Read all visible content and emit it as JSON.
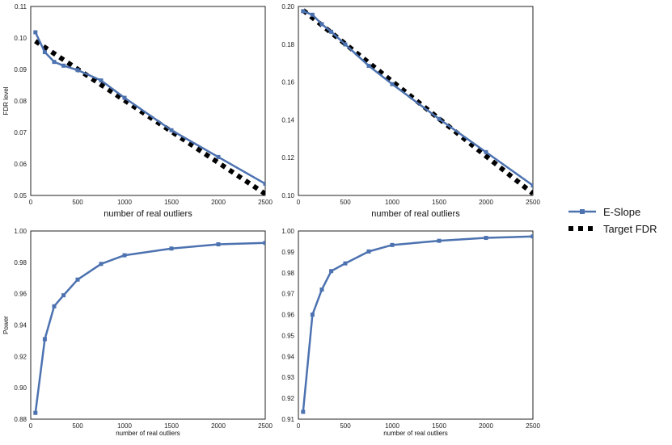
{
  "colors": {
    "e_slope": "#4C72B0",
    "target": "#000000",
    "frame": "#222222"
  },
  "legend": {
    "entries": [
      {
        "name": "E-Slope",
        "style": "line-square"
      },
      {
        "name": "Target FDR",
        "style": "dotted"
      }
    ],
    "placement": "right-center"
  },
  "chart_data": [
    {
      "type": "line",
      "position": "top-left",
      "xlabel": "number of real outliers",
      "ylabel": "FDR level",
      "xlim": [
        0,
        2500
      ],
      "ylim": [
        0.05,
        0.11
      ],
      "xticks": [
        "0",
        "500",
        "1000",
        "1500",
        "2000",
        "2500"
      ],
      "yticks": [
        "0.05",
        "0.06",
        "0.07",
        "0.08",
        "0.09",
        "0.10",
        "0.11"
      ],
      "series": [
        {
          "name": "E-Slope",
          "x": [
            50,
            150,
            250,
            350,
            500,
            750,
            1000,
            1500,
            2000,
            2500
          ],
          "values": [
            0.1018,
            0.0955,
            0.0924,
            0.0912,
            0.0898,
            0.0865,
            0.081,
            0.0707,
            0.0622,
            0.0537
          ]
        },
        {
          "name": "Target FDR",
          "x": [
            50,
            2500
          ],
          "values": [
            0.099,
            0.0505
          ]
        }
      ]
    },
    {
      "type": "line",
      "position": "top-right",
      "xlabel": "number of real outliers",
      "ylabel": "",
      "xlim": [
        0,
        2500
      ],
      "ylim": [
        0.1,
        0.2
      ],
      "xticks": [
        "0",
        "500",
        "1000",
        "1500",
        "2000",
        "2500"
      ],
      "yticks": [
        "0.10",
        "0.12",
        "0.14",
        "0.16",
        "0.18",
        "0.20"
      ],
      "series": [
        {
          "name": "E-Slope",
          "x": [
            50,
            150,
            250,
            350,
            500,
            750,
            1000,
            1500,
            2000,
            2500
          ],
          "values": [
            0.1975,
            0.1956,
            0.1906,
            0.1866,
            0.1799,
            0.1686,
            0.1589,
            0.1405,
            0.1229,
            0.1053
          ]
        },
        {
          "name": "Target FDR",
          "x": [
            50,
            2500
          ],
          "values": [
            0.198,
            0.101
          ]
        }
      ]
    },
    {
      "type": "line",
      "position": "bottom-left",
      "xlabel": "number of real outliers",
      "ylabel": "Power",
      "xlim": [
        0,
        2500
      ],
      "ylim": [
        0.88,
        1.0
      ],
      "xticks": [
        "0",
        "500",
        "1000",
        "1500",
        "2000",
        "2500"
      ],
      "yticks": [
        "0.88",
        "0.90",
        "0.92",
        "0.94",
        "0.96",
        "0.98",
        "1.00"
      ],
      "series": [
        {
          "name": "E-Slope",
          "x": [
            50,
            150,
            250,
            350,
            500,
            750,
            1000,
            1500,
            2000,
            2500
          ],
          "values": [
            0.884,
            0.931,
            0.952,
            0.959,
            0.969,
            0.979,
            0.9845,
            0.9888,
            0.9915,
            0.9924
          ]
        }
      ]
    },
    {
      "type": "line",
      "position": "bottom-right",
      "xlabel": "number of real outliers",
      "ylabel": "",
      "xlim": [
        0,
        2500
      ],
      "ylim": [
        0.91,
        1.0
      ],
      "xticks": [
        "0",
        "500",
        "1000",
        "1500",
        "2000",
        "2500"
      ],
      "yticks": [
        "0.91",
        "0.92",
        "0.93",
        "0.94",
        "0.95",
        "0.96",
        "0.97",
        "0.98",
        "0.99",
        "1.00"
      ],
      "series": [
        {
          "name": "E-Slope",
          "x": [
            50,
            150,
            250,
            350,
            500,
            750,
            1000,
            1500,
            2000,
            2500
          ],
          "values": [
            0.9135,
            0.96,
            0.972,
            0.9808,
            0.9845,
            0.9902,
            0.9933,
            0.9953,
            0.9967,
            0.9974
          ]
        }
      ]
    }
  ]
}
